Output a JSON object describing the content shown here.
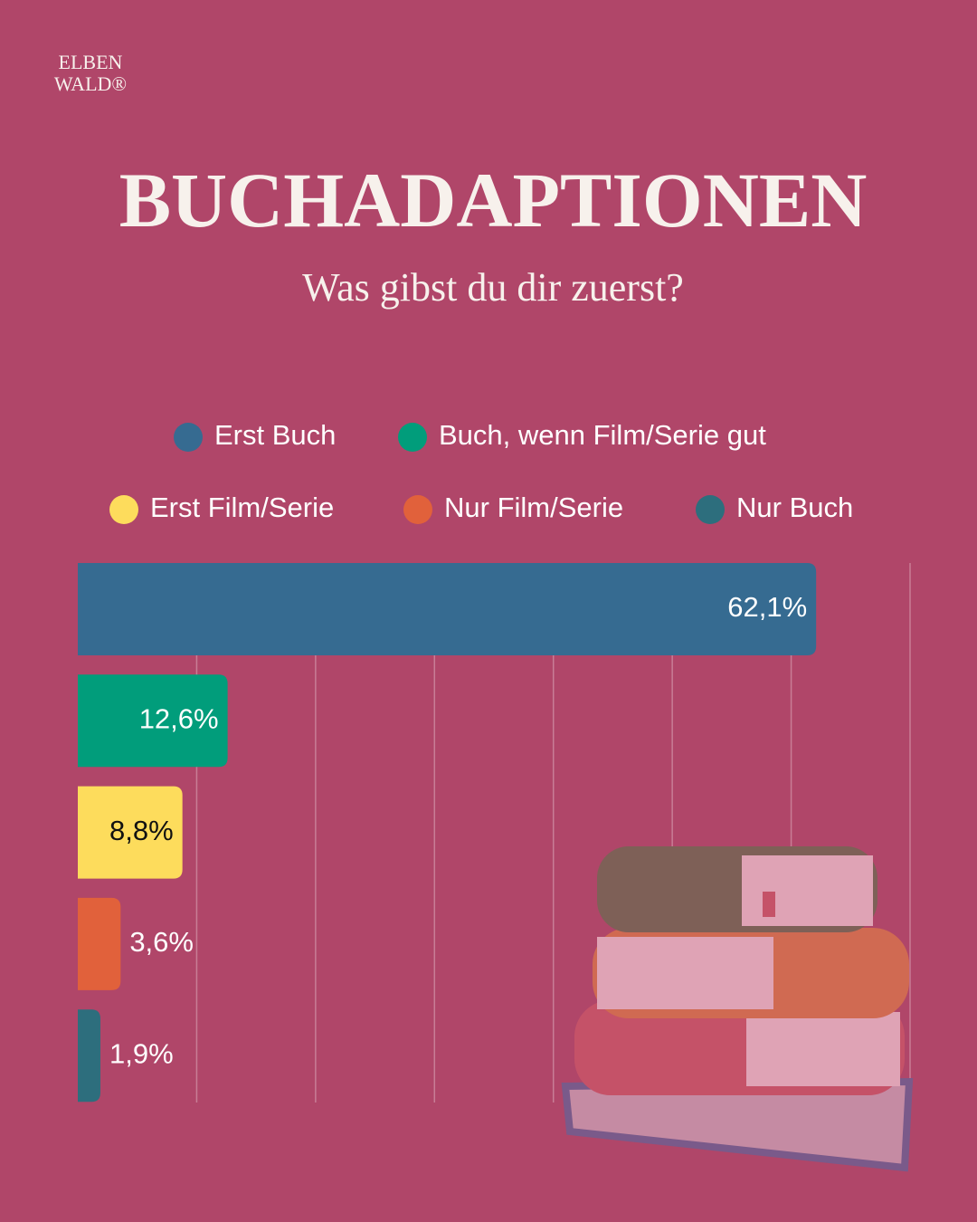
{
  "brand": [
    "ELBEN",
    "WALD®"
  ],
  "chart_data": {
    "type": "bar",
    "orientation": "horizontal",
    "title": "BUCHADAPTIONEN",
    "subtitle": "Was gibst du dir zuerst?",
    "categories": [
      "Erst Buch",
      "Buch, wenn Film/Serie gut",
      "Erst Film/Serie",
      "Nur Film/Serie",
      "Nur Buch"
    ],
    "values": [
      62.1,
      12.6,
      8.8,
      3.6,
      1.9
    ],
    "value_labels": [
      "62,1%",
      "12,6%",
      "8,8%",
      "3,6%",
      "1,9%"
    ],
    "colors": [
      "#366b91",
      "#019d7b",
      "#fddc5c",
      "#e1613b",
      "#2d6e7d"
    ],
    "value_label_colors": [
      "#ffffff",
      "#ffffff",
      "#111111",
      "#ffffff",
      "#ffffff"
    ],
    "xlim": [
      0,
      70
    ],
    "xticks": [
      10,
      20,
      30,
      40,
      50,
      60,
      70
    ],
    "grid": true
  }
}
